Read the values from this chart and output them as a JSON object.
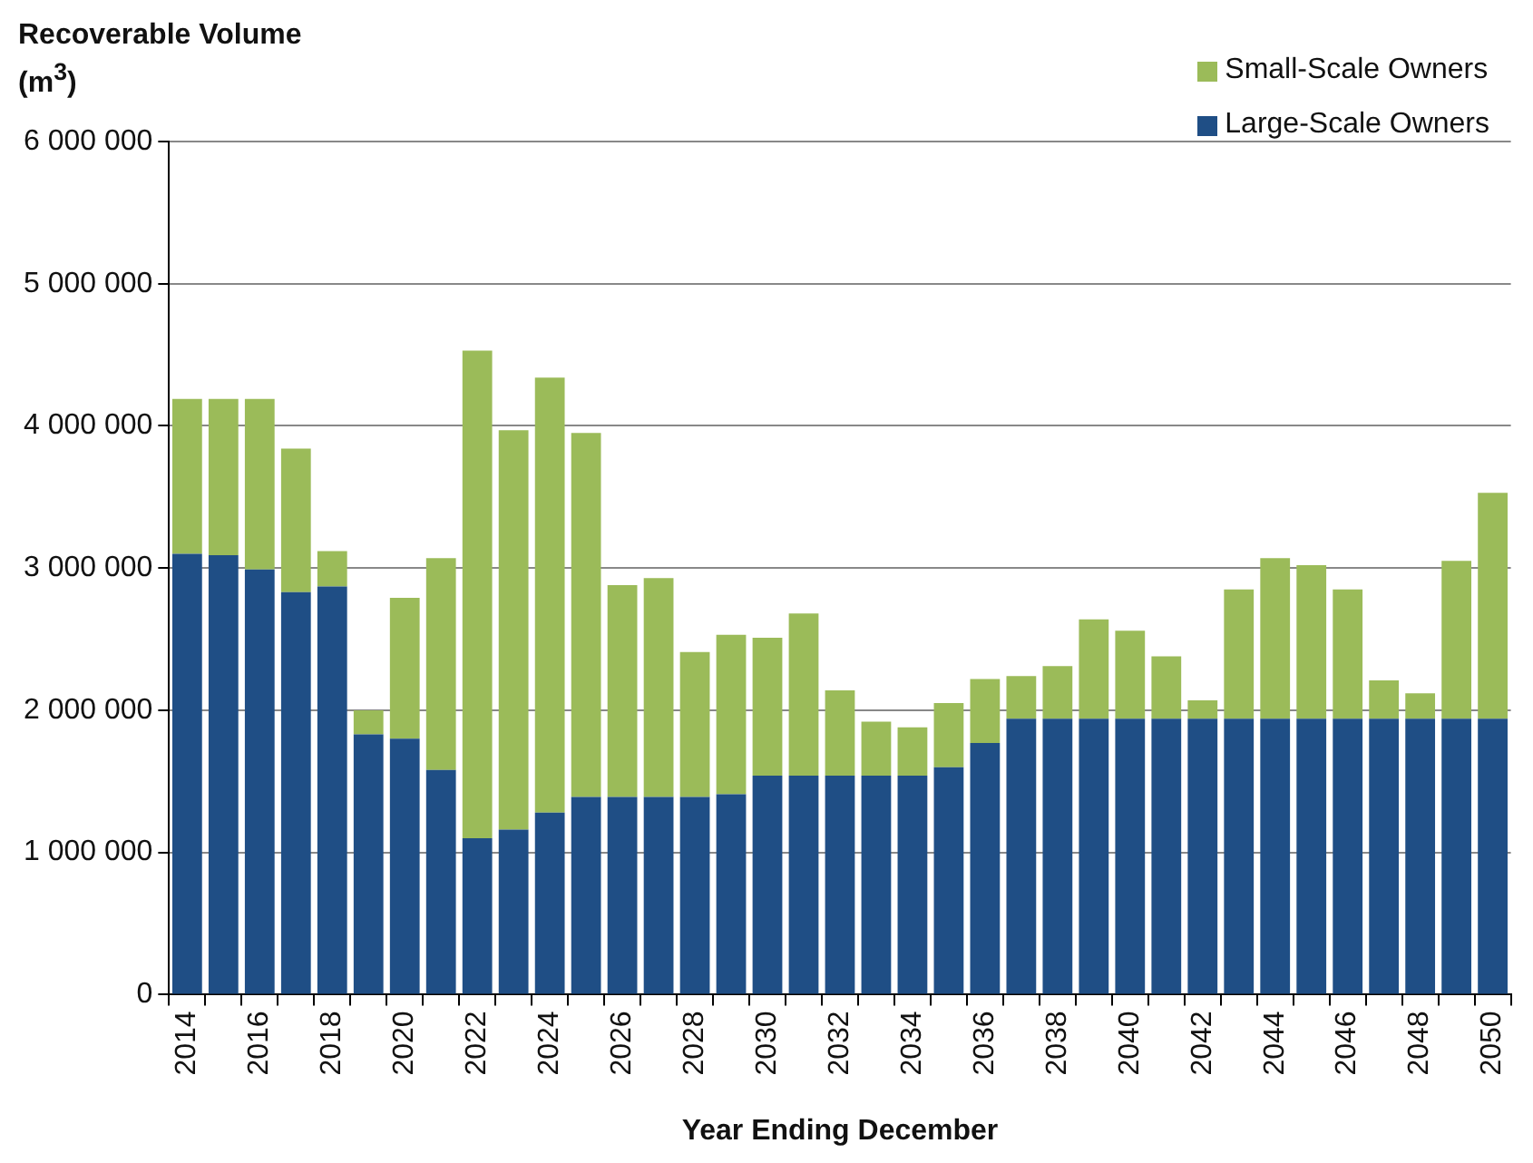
{
  "chart_data": {
    "type": "bar",
    "stacked": true,
    "xlabel": "Year Ending December",
    "ylabel": "Recoverable Volume (m$^{3}$)",
    "categories": [
      "2014",
      null,
      "2016",
      null,
      "2018",
      null,
      "2020",
      null,
      "2022",
      null,
      "2024",
      null,
      "2026",
      null,
      "2028",
      null,
      "2030",
      null,
      "2032",
      null,
      "2034",
      null,
      "2036",
      null,
      "2038",
      null,
      "2040",
      null,
      "2042",
      null,
      "2044",
      null,
      "2046",
      null,
      "2048",
      null,
      "2050"
    ],
    "series": [
      {
        "name": "Large-Scale Owners",
        "color": "#1f4e85",
        "values": [
          3100000,
          3090000,
          2990000,
          2830000,
          2870000,
          1830000,
          1800000,
          1580000,
          1100000,
          1160000,
          1280000,
          1390000,
          1390000,
          1390000,
          1390000,
          1410000,
          1540000,
          1540000,
          1540000,
          1540000,
          1540000,
          1600000,
          1770000,
          1940000,
          1940000,
          1940000,
          1940000,
          1940000,
          1940000,
          1940000,
          1940000,
          1940000,
          1940000,
          1940000,
          1940000,
          1940000,
          1940000
        ]
      },
      {
        "name": "Small-Scale Owners",
        "color": "#9bbb59",
        "values": [
          1090000,
          1100000,
          1200000,
          1010000,
          250000,
          170000,
          990000,
          1490000,
          3430000,
          2810000,
          3060000,
          2560000,
          1490000,
          1540000,
          1020000,
          1120000,
          970000,
          1140000,
          600000,
          380000,
          340000,
          450000,
          450000,
          300000,
          370000,
          700000,
          620000,
          440000,
          130000,
          910000,
          1130000,
          1080000,
          910000,
          270000,
          180000,
          1110000,
          1590000
        ]
      }
    ],
    "ylim": [
      0,
      6000000
    ],
    "yticks": [
      0,
      {
        "value": 1000000,
        "label": "1 000 000"
      },
      {
        "value": 2000000,
        "label": "2 000 000"
      },
      {
        "value": 3000000,
        "label": "3 000 000"
      },
      {
        "value": 4000000,
        "label": "4 000 000"
      },
      {
        "value": 5000000,
        "label": "5 000 000"
      },
      {
        "value": 6000000,
        "label": "6 000 000"
      }
    ],
    "grid": "y",
    "legend": "top right"
  }
}
